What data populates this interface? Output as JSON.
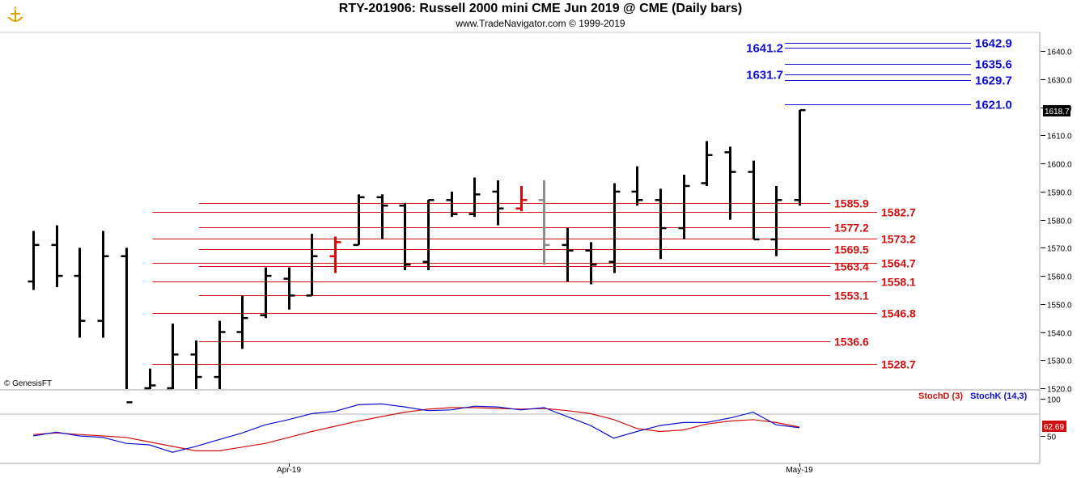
{
  "header": {
    "title": "RTY-201906:  Russell 2000 mini CME Jun 2019 @ CME  (Daily bars)",
    "subtitle": "www.TradeNavigator.com © 1999-2019",
    "credit": "© GenesisFT"
  },
  "colors": {
    "bar": "#000000",
    "highlight_bar": "#e00000",
    "gray_bar": "#8c8c8c",
    "support_line": "#d01010",
    "resistance_line": "#1010cc",
    "stoch_d": "#d01010",
    "stoch_k": "#1010cc",
    "last_price_bg": "#000000"
  },
  "chart_data": [
    {
      "type": "ohlc",
      "title": "RTY-201906:  Russell 2000 mini CME Jun 2019 @ CME  (Daily bars)",
      "ylim": [
        1516,
        1648
      ],
      "yticks": [
        1520,
        1530,
        1540,
        1550,
        1560,
        1570,
        1580,
        1590,
        1600,
        1610,
        1620,
        1630,
        1640
      ],
      "ytick_labels": [
        "1520.0",
        "1530.0",
        "1540.0",
        "1550.0",
        "1560.0",
        "1570.0",
        "1580.0",
        "1590.0",
        "1600.0",
        "1610.0",
        "1620.0",
        "1630.0",
        "1640.0"
      ],
      "x_labels": [
        {
          "bar": 11,
          "label": "Apr-19"
        },
        {
          "bar": 33,
          "label": "May-19"
        }
      ],
      "last_price": "1618.7",
      "bars": [
        {
          "o": 1558,
          "h": 1576,
          "l": 1555,
          "c": 1571,
          "col": "black"
        },
        {
          "o": 1571,
          "h": 1578,
          "l": 1556,
          "c": 1560,
          "col": "black"
        },
        {
          "o": 1560,
          "h": 1570,
          "l": 1538,
          "c": 1544,
          "col": "black"
        },
        {
          "o": 1544,
          "h": 1576,
          "l": 1538,
          "c": 1567,
          "col": "black"
        },
        {
          "o": 1567,
          "h": 1570,
          "l": 1512,
          "c": 1515,
          "col": "black"
        },
        {
          "o": 1520,
          "h": 1527,
          "l": 1512,
          "c": 1521,
          "col": "black"
        },
        {
          "o": 1520,
          "h": 1543,
          "l": 1512,
          "c": 1532,
          "col": "black"
        },
        {
          "o": 1532,
          "h": 1537,
          "l": 1513,
          "c": 1524,
          "col": "black"
        },
        {
          "o": 1524,
          "h": 1544,
          "l": 1513,
          "c": 1540,
          "col": "black"
        },
        {
          "o": 1540,
          "h": 1553,
          "l": 1534,
          "c": 1545,
          "col": "black"
        },
        {
          "o": 1546,
          "h": 1563,
          "l": 1545,
          "c": 1560,
          "col": "black"
        },
        {
          "o": 1559,
          "h": 1563,
          "l": 1548,
          "c": 1553,
          "col": "black"
        },
        {
          "o": 1553,
          "h": 1575,
          "l": 1553,
          "c": 1567,
          "col": "black"
        },
        {
          "o": 1567,
          "h": 1574,
          "l": 1561,
          "c": 1572,
          "col": "red"
        },
        {
          "o": 1571,
          "h": 1589,
          "l": 1571,
          "c": 1588,
          "col": "black"
        },
        {
          "o": 1588,
          "h": 1589,
          "l": 1573,
          "c": 1585,
          "col": "black"
        },
        {
          "o": 1585,
          "h": 1586,
          "l": 1562,
          "c": 1564,
          "col": "black"
        },
        {
          "o": 1565,
          "h": 1587,
          "l": 1562,
          "c": 1587,
          "col": "black"
        },
        {
          "o": 1587,
          "h": 1590,
          "l": 1581,
          "c": 1582,
          "col": "black"
        },
        {
          "o": 1582,
          "h": 1595,
          "l": 1581,
          "c": 1589,
          "col": "black"
        },
        {
          "o": 1590,
          "h": 1594,
          "l": 1578,
          "c": 1584,
          "col": "black"
        },
        {
          "o": 1584,
          "h": 1592,
          "l": 1583,
          "c": 1587,
          "col": "red"
        },
        {
          "o": 1587,
          "h": 1594,
          "l": 1564,
          "c": 1571,
          "col": "gray"
        },
        {
          "o": 1571,
          "h": 1577,
          "l": 1558,
          "c": 1569,
          "col": "black"
        },
        {
          "o": 1569,
          "h": 1572,
          "l": 1557,
          "c": 1564,
          "col": "black"
        },
        {
          "o": 1565,
          "h": 1593,
          "l": 1561,
          "c": 1590,
          "col": "black"
        },
        {
          "o": 1590,
          "h": 1599,
          "l": 1585,
          "c": 1587,
          "col": "black"
        },
        {
          "o": 1587,
          "h": 1591,
          "l": 1566,
          "c": 1577,
          "col": "black"
        },
        {
          "o": 1577,
          "h": 1596,
          "l": 1573,
          "c": 1592,
          "col": "black"
        },
        {
          "o": 1593,
          "h": 1608,
          "l": 1592,
          "c": 1603,
          "col": "black"
        },
        {
          "o": 1604,
          "h": 1606,
          "l": 1580,
          "c": 1597,
          "col": "black"
        },
        {
          "o": 1597,
          "h": 1601,
          "l": 1573,
          "c": 1573,
          "col": "black"
        },
        {
          "o": 1573,
          "h": 1592,
          "l": 1567,
          "c": 1587,
          "col": "black"
        },
        {
          "o": 1587,
          "h": 1619,
          "l": 1585,
          "c": 1619,
          "col": "black"
        }
      ],
      "levels": [
        {
          "value": 1585.9,
          "label": "1585.9",
          "color": "red",
          "from_bar": 7,
          "label_at": "inner"
        },
        {
          "value": 1582.7,
          "label": "1582.7",
          "color": "red",
          "from_bar": 5,
          "label_at": "outer"
        },
        {
          "value": 1577.2,
          "label": "1577.2",
          "color": "red",
          "from_bar": 7,
          "label_at": "inner"
        },
        {
          "value": 1573.2,
          "label": "1573.2",
          "color": "red",
          "from_bar": 5,
          "label_at": "outer"
        },
        {
          "value": 1569.5,
          "label": "1569.5",
          "color": "red",
          "from_bar": 7,
          "label_at": "inner"
        },
        {
          "value": 1564.7,
          "label": "1564.7",
          "color": "red",
          "from_bar": 5,
          "label_at": "outer"
        },
        {
          "value": 1563.4,
          "label": "1563.4",
          "color": "red",
          "from_bar": 7,
          "label_at": "inner"
        },
        {
          "value": 1558.1,
          "label": "1558.1",
          "color": "red",
          "from_bar": 5,
          "label_at": "outer"
        },
        {
          "value": 1553.1,
          "label": "1553.1",
          "color": "red",
          "from_bar": 7,
          "label_at": "inner"
        },
        {
          "value": 1546.8,
          "label": "1546.8",
          "color": "red",
          "from_bar": 5,
          "label_at": "outer"
        },
        {
          "value": 1536.6,
          "label": "1536.6",
          "color": "red",
          "from_bar": 7,
          "label_at": "inner"
        },
        {
          "value": 1528.7,
          "label": "1528.7",
          "color": "red",
          "from_bar": 5,
          "label_at": "outer"
        },
        {
          "value": 1642.9,
          "label": "1642.9",
          "color": "blue",
          "from_bar": 33,
          "label_at": "outer"
        },
        {
          "value": 1641.2,
          "label": "1641.2",
          "color": "blue",
          "from_bar": 33,
          "label_at": "left"
        },
        {
          "value": 1635.6,
          "label": "1635.6",
          "color": "blue",
          "from_bar": 33,
          "label_at": "outer"
        },
        {
          "value": 1631.7,
          "label": "1631.7",
          "color": "blue",
          "from_bar": 33,
          "label_at": "left"
        },
        {
          "value": 1629.7,
          "label": "1629.7",
          "color": "blue",
          "from_bar": 33,
          "label_at": "outer"
        },
        {
          "value": 1621.0,
          "label": "1621.0",
          "color": "blue",
          "from_bar": 33,
          "label_at": "outer"
        }
      ]
    },
    {
      "type": "line",
      "title": "",
      "ylim": [
        5,
        120
      ],
      "yticks": [
        50,
        100
      ],
      "ytick_labels": [
        "50",
        "100"
      ],
      "last_value": "62.69",
      "series": [
        {
          "name": "StochD (3)",
          "color": "red",
          "values": [
            52,
            54,
            52,
            50,
            48,
            42,
            36,
            30,
            30,
            35,
            40,
            48,
            56,
            63,
            70,
            76,
            82,
            86,
            88,
            88,
            87,
            86,
            87,
            84,
            80,
            72,
            60,
            56,
            58,
            66,
            70,
            72,
            68,
            62
          ]
        },
        {
          "name": "StochK (14,3)",
          "color": "blue",
          "values": [
            50,
            55,
            50,
            48,
            40,
            38,
            28,
            36,
            45,
            54,
            65,
            72,
            80,
            83,
            92,
            93,
            89,
            84,
            85,
            90,
            89,
            85,
            88,
            76,
            64,
            47,
            56,
            64,
            68,
            68,
            74,
            82,
            65,
            61
          ]
        }
      ]
    }
  ]
}
